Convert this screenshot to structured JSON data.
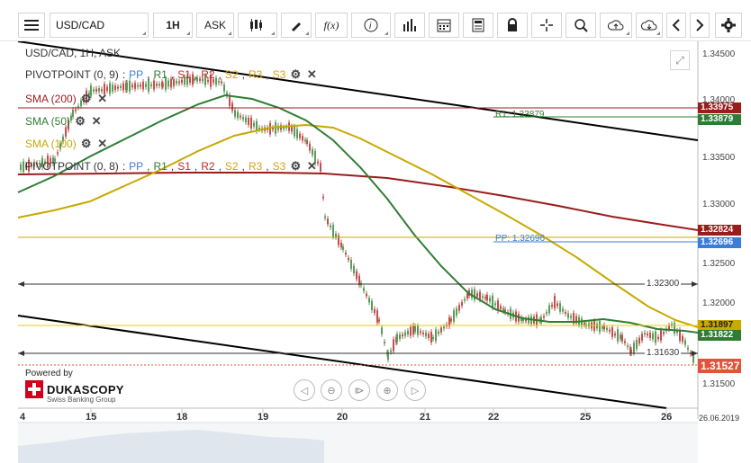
{
  "toolbar": {
    "symbol": "USD/CAD",
    "timeframe": "1H",
    "price_side": "ASK",
    "function_label": "f(x)"
  },
  "chart": {
    "title": "USD/CAD, 1H, ASK",
    "legends": [
      {
        "prefix": "PIVOTPOINT (0, 9)",
        "sep": " : ",
        "items": [
          {
            "label": "PP",
            "color": "#3b7dd8"
          },
          {
            "label": "R1",
            "color": "#2e7d32"
          },
          {
            "label": "S1",
            "color": "#c62828"
          },
          {
            "label": "R2",
            "color": "#c62828"
          },
          {
            "label": "S2",
            "color": "#d4a017"
          },
          {
            "label": "R3",
            "color": "#d4a017"
          },
          {
            "label": "S3",
            "color": "#d4a017"
          }
        ]
      },
      {
        "prefix": "SMA (200)",
        "color": "#9b1c1c"
      },
      {
        "prefix": "SMA (50)",
        "color": "#2e7d32"
      },
      {
        "prefix": "SMA (100)",
        "color": "#c9a800"
      },
      {
        "prefix": "PIVOTPOINT (0, 8)",
        "sep": " : ",
        "items": [
          {
            "label": "PP",
            "color": "#3b7dd8"
          },
          {
            "label": "R1",
            "color": "#2e7d32"
          },
          {
            "label": "S1",
            "color": "#c62828"
          },
          {
            "label": "R2",
            "color": "#c62828"
          },
          {
            "label": "S2",
            "color": "#d4a017"
          },
          {
            "label": "R3",
            "color": "#d4a017"
          },
          {
            "label": "S3",
            "color": "#d4a017"
          }
        ]
      }
    ],
    "price_axis": [
      "1.34500",
      "1.34000",
      "1.33500",
      "1.33000",
      "1.32500",
      "1.32000",
      "1.31500"
    ],
    "price_tags": [
      {
        "value": "1.33975",
        "color": "#9b1c1c"
      },
      {
        "value": "1.33879",
        "color": "#2e7d32"
      },
      {
        "value": "1.32824",
        "color": "#9b1c1c"
      },
      {
        "value": "1.32696",
        "color": "#3b7dd8"
      },
      {
        "value": "1.31897",
        "color": "#c9a800"
      },
      {
        "value": "1.31822",
        "color": "#2e7d32"
      },
      {
        "value": "1.31527",
        "color": "#e0543b"
      }
    ],
    "date_axis": [
      "4",
      "15",
      "18",
      "19",
      "20",
      "21",
      "22",
      "25",
      "26",
      "26.06.2019"
    ],
    "annotations": {
      "r1": "R1: 1.33879",
      "pp": "PP: 1.32696",
      "h1": "1.32300",
      "h2": "1.31630"
    },
    "brand": {
      "powered_by": "Powered by",
      "name": "DUKASCOPY",
      "sub": "Swiss Banking Group"
    }
  }
}
